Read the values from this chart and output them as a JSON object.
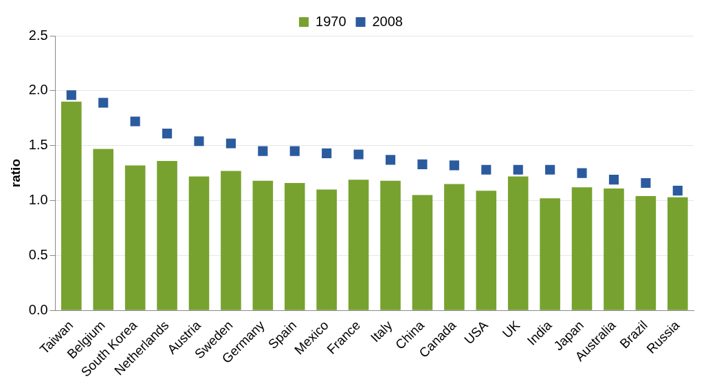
{
  "chart_data": {
    "type": "bar",
    "ylabel": "ratio",
    "categories": [
      "Taiwan",
      "Belgium",
      "South Korea",
      "Netherlands",
      "Austria",
      "Sweden",
      "Germany",
      "Spain",
      "Mexico",
      "France",
      "Italy",
      "China",
      "Canada",
      "USA",
      "UK",
      "India",
      "Japan",
      "Australia",
      "Brazil",
      "Russia"
    ],
    "series": [
      {
        "name": "1970",
        "color": "#77a22f",
        "values": [
          1.9,
          1.47,
          1.32,
          1.36,
          1.22,
          1.27,
          1.18,
          1.16,
          1.1,
          1.19,
          1.18,
          1.05,
          1.15,
          1.09,
          1.22,
          1.02,
          1.12,
          1.11,
          1.04,
          1.03
        ]
      },
      {
        "name": "2008",
        "type": "scatter",
        "marker": "square",
        "color": "#2b5b9e",
        "x": [
          "Taiwan",
          "Belgium",
          "South Korea",
          "Netherlands",
          "Austria",
          "Sweden",
          "Germany",
          "Spain",
          "Mexico",
          "France",
          "Italy",
          "China",
          "Canada",
          "USA",
          "UK",
          "India",
          "Japan",
          "Australia",
          "Brazil",
          "Russia"
        ],
        "values": [
          1.96,
          1.89,
          1.72,
          1.61,
          1.54,
          1.52,
          1.45,
          1.45,
          1.43,
          1.42,
          1.37,
          1.33,
          1.32,
          1.28,
          1.28,
          1.28,
          1.25,
          1.19,
          1.16,
          1.09
        ]
      }
    ],
    "ylim": [
      0,
      2.5
    ],
    "yticks": [
      {
        "value": 0,
        "label": "0.0"
      },
      {
        "value": 0.5,
        "label": "0.5"
      },
      {
        "value": 1,
        "label": "1.0"
      },
      {
        "value": 1.5,
        "label": "1.5"
      },
      {
        "value": 2,
        "label": "2.0"
      },
      {
        "value": 2.5,
        "label": "2.5"
      }
    ],
    "grid": "y",
    "legend": "top"
  }
}
